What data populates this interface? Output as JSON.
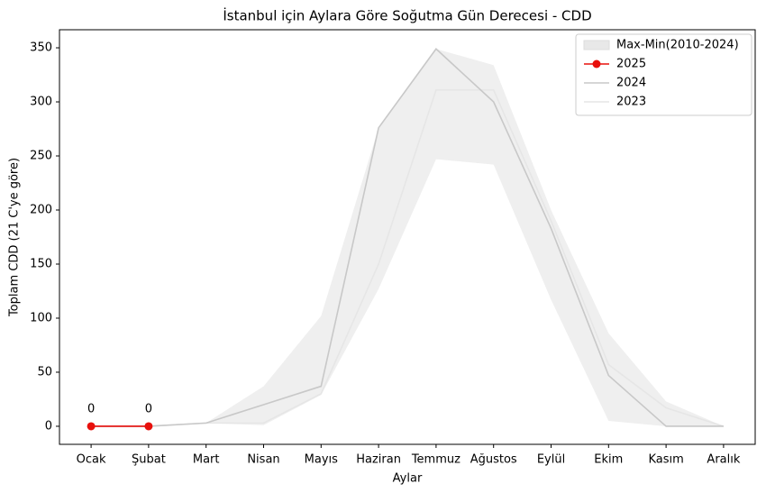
{
  "chart_data": {
    "type": "line",
    "title": "İstanbul için Aylara Göre Soğutma Gün Derecesi - CDD",
    "x_label": "Aylar",
    "y_label": "Toplam CDD (21 C'ye göre)",
    "categories": [
      "Ocak",
      "Şubat",
      "Mart",
      "Nisan",
      "Mayıs",
      "Haziran",
      "Temmuz",
      "Ağustos",
      "Eylül",
      "Ekim",
      "Kasım",
      "Aralık"
    ],
    "band": {
      "name": "Max-Min(2010-2024)",
      "color": "#e8e8e8",
      "max": [
        0,
        0,
        3,
        37,
        102,
        276,
        349,
        334,
        200,
        86,
        23,
        0
      ],
      "min": [
        0,
        0,
        3,
        1,
        29,
        127,
        247,
        242,
        117,
        5,
        0,
        0
      ]
    },
    "series": [
      {
        "name": "2025",
        "color": "#e8100c",
        "values": [
          0,
          0,
          null,
          null,
          null,
          null,
          null,
          null,
          null,
          null,
          null,
          null
        ],
        "markers": true
      },
      {
        "name": "2024",
        "color": "#c8c8c8",
        "values": [
          0,
          0,
          3,
          20,
          37,
          276,
          349,
          300,
          183,
          47,
          0,
          0
        ]
      },
      {
        "name": "2023",
        "color": "#e6e6e6",
        "values": [
          0,
          0,
          3,
          3,
          30,
          150,
          311,
          311,
          190,
          57,
          17,
          0
        ]
      }
    ],
    "ylim": [
      -16.7,
      366.7
    ],
    "yticks": [
      0,
      50,
      100,
      150,
      200,
      250,
      300,
      350
    ],
    "legend": "upper right"
  }
}
